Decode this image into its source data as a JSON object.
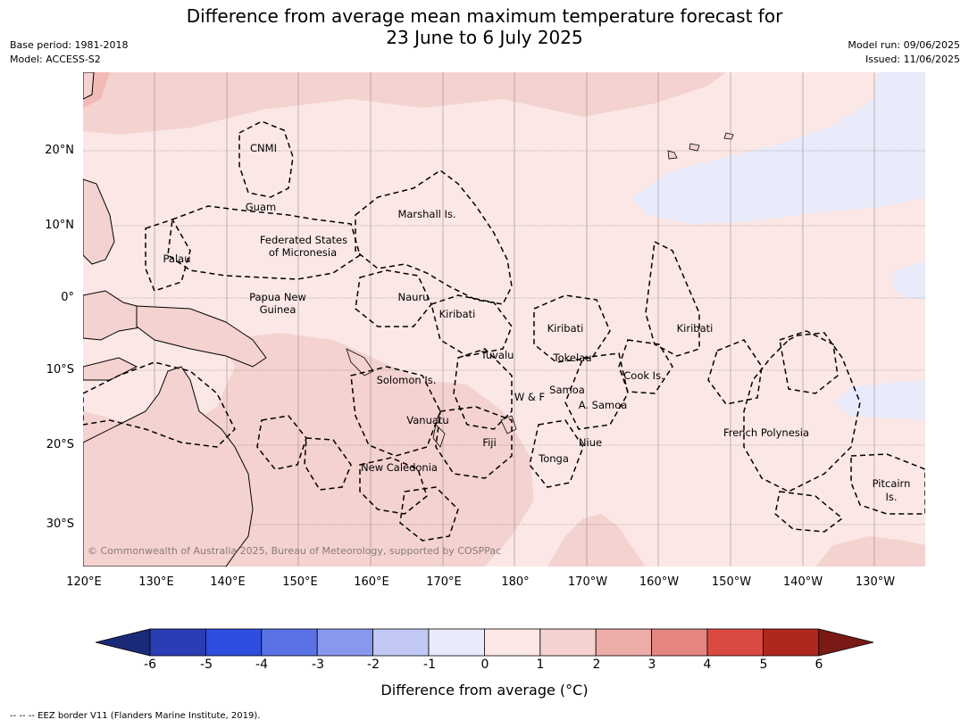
{
  "title": {
    "line1": "Difference from average mean maximum temperature forecast for",
    "line2": "23 June to 6 July 2025"
  },
  "meta": {
    "base_period": "Base period: 1981-2018",
    "model": "Model: ACCESS-S2",
    "model_run": "Model run: 09/06/2025",
    "issued": "Issued: 11/06/2025"
  },
  "map": {
    "copyright": "© Commonwealth of Australia 2025, Bureau of Meteorology, supported by COSPPac",
    "lat_labels": [
      "20°N",
      "10°N",
      "0°",
      "10°S",
      "20°S",
      "30°S"
    ],
    "lon_labels": [
      "120°E",
      "130°E",
      "140°E",
      "150°E",
      "160°E",
      "170°E",
      "180°",
      "170°W",
      "160°W",
      "150°W",
      "140°W",
      "130°W"
    ],
    "regions": [
      "CNMI",
      "Guam",
      "Marshall Is.",
      "Federated States",
      "of Micronesia",
      "Palau",
      "Papua New",
      "Guinea",
      "Nauru",
      "Kiribati",
      "Kiribati",
      "Kiribati",
      "Tuvalu",
      "Tokelau",
      "Cook Is.",
      "Solomon Is.",
      "Samoa",
      "W & F",
      "A. Samoa",
      "Vanuatu",
      "Fiji",
      "Niue",
      "French Polynesia",
      "Tonga",
      "New Caledonia",
      "Pitcairn",
      "Is."
    ],
    "colors": {
      "anomaly_0_1": "#fbe8e6",
      "anomaly_1_2": "#f4d2cf",
      "anomaly_m1_0": "#e9ebfb",
      "ocean_bg": "#fbe8e6"
    }
  },
  "colorbar": {
    "title": "Difference from average (°C)",
    "ticks": [
      "-6",
      "-5",
      "-4",
      "-3",
      "-2",
      "-1",
      "0",
      "1",
      "2",
      "3",
      "4",
      "5",
      "6"
    ],
    "colors": [
      "#1b2a78",
      "#2b3db5",
      "#2f4de0",
      "#5a72e6",
      "#8898ec",
      "#c2c8f5",
      "#e9ebfb",
      "#fbe8e6",
      "#f4d2cf",
      "#ecaca7",
      "#e48580",
      "#db4a42",
      "#b0271f",
      "#7a1a16"
    ]
  },
  "footnote": "--  --  -- EEZ border V11 (Flanders Marine Institute, 2019)."
}
